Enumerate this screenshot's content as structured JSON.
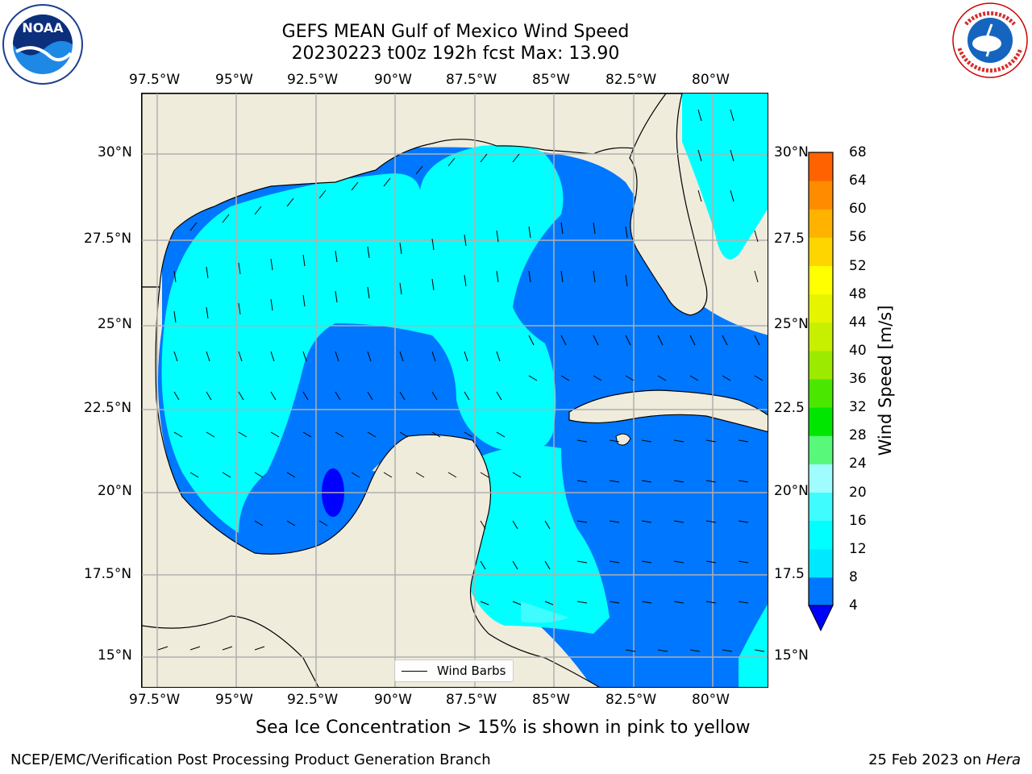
{
  "header": {
    "title_line1": "GEFS MEAN Gulf of Mexico Wind Speed",
    "title_line2": "20230223 t00z 192h fcst   Max: 13.90"
  },
  "logos": {
    "left": "NOAA",
    "right": "NATIONAL WEATHER SERVICE"
  },
  "map_data": {
    "region": "Gulf of Mexico",
    "variable": "Wind Speed",
    "lon_range": [
      -98,
      -78.2
    ],
    "lat_range": [
      14,
      31.8
    ],
    "lon_ticks": [
      "97.5°W",
      "95°W",
      "92.5°W",
      "90°W",
      "87.5°W",
      "85°W",
      "82.5°W",
      "80°W"
    ],
    "lat_ticks": [
      "30°N",
      "27.5°N",
      "25°N",
      "22.5°N",
      "20°N",
      "17.5°N",
      "15°N"
    ],
    "lat_ticks_right": [
      "30°N",
      "27.5",
      "25°N",
      "22.5",
      "20°N",
      "17.5",
      "15°N"
    ],
    "grid": true,
    "max_value": 13.9
  },
  "colorbar": {
    "title": "Wind Speed [m/s]",
    "labels": [
      "4",
      "8",
      "12",
      "16",
      "20",
      "24",
      "28",
      "32",
      "36",
      "40",
      "44",
      "48",
      "52",
      "56",
      "60",
      "64",
      "68"
    ],
    "colors": [
      "#0077ff",
      "#00e8ff",
      "#00ffff",
      "#3ffcff",
      "#9ffcff",
      "#58f87a",
      "#00e600",
      "#4ae800",
      "#9bea00",
      "#c7ef00",
      "#e6f400",
      "#ffff00",
      "#ffd500",
      "#ffb200",
      "#ff8c00",
      "#ff6200",
      "#ff3000",
      "#ff0000"
    ],
    "extend_color": "#0000ff"
  },
  "legend": {
    "label": "Wind Barbs"
  },
  "notes": {
    "ice": "Sea Ice Concentration > 15% is shown in pink to yellow"
  },
  "footer": {
    "left": "NCEP/EMC/Verification Post Processing Product Generation Branch",
    "date": "25 Feb 2023 on ",
    "system": "Hera"
  }
}
